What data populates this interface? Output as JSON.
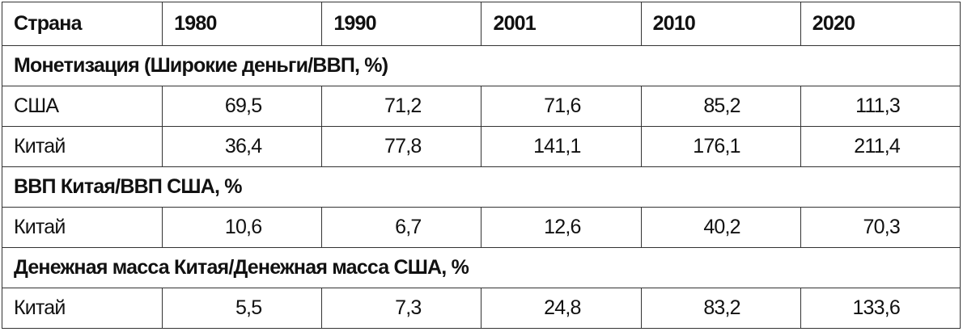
{
  "table": {
    "header": [
      "Страна",
      "1980",
      "1990",
      "2001",
      "2010",
      "2020"
    ],
    "sections": [
      {
        "title": "Монетизация (Широкие деньги/ВВП, %)",
        "rows": [
          {
            "country": "США",
            "values": [
              "69,5",
              "71,2",
              "71,6",
              "85,2",
              "111,3"
            ]
          },
          {
            "country": "Китай",
            "values": [
              "36,4",
              "77,8",
              "141,1",
              "176,1",
              "211,4"
            ]
          }
        ]
      },
      {
        "title": "ВВП Китая/ВВП США, %",
        "rows": [
          {
            "country": "Китай",
            "values": [
              "10,6",
              "6,7",
              "12,6",
              "40,2",
              "70,3"
            ]
          }
        ]
      },
      {
        "title": "Денежная масса Китая/Денежная масса США, %",
        "rows": [
          {
            "country": "Китай",
            "values": [
              "5,5",
              "7,3",
              "24,8",
              "83,2",
              "133,6"
            ]
          }
        ]
      }
    ]
  }
}
